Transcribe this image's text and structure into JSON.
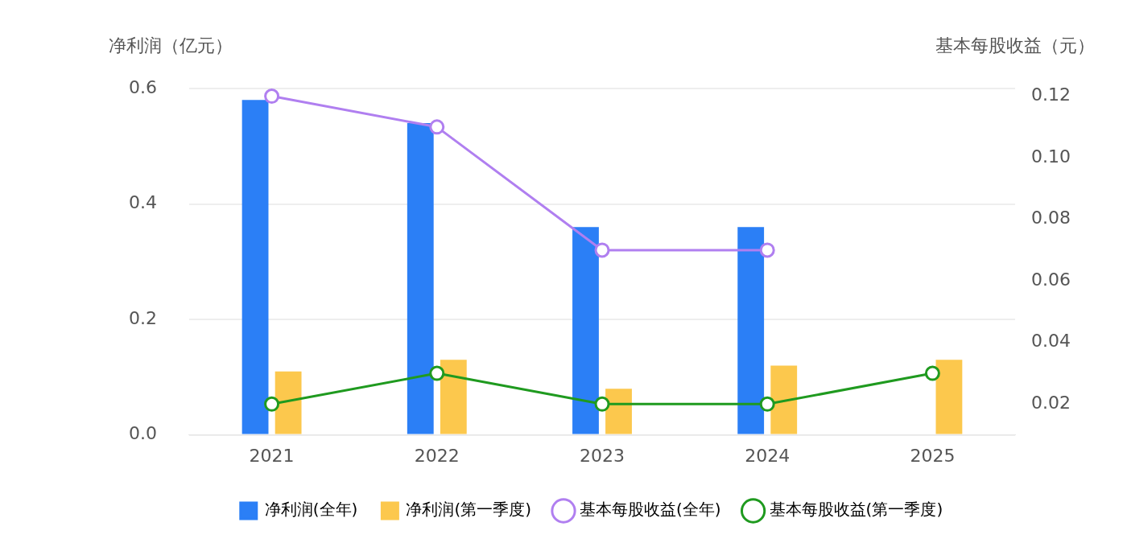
{
  "chart_data": {
    "type": "bar",
    "ylabel": "净利润（亿元）",
    "y2label": "基本每股收益（元）",
    "categories": [
      "2021",
      "2022",
      "2023",
      "2024",
      "2025"
    ],
    "series": [
      {
        "name": "净利润(全年)",
        "color": "#2b7ff6",
        "values": [
          0.58,
          0.54,
          0.36,
          0.36,
          null
        ]
      },
      {
        "name": "净利润(第一季度)",
        "color": "#fcc84d",
        "values": [
          0.11,
          0.13,
          0.08,
          0.12,
          0.13
        ]
      },
      {
        "name": "基本每股收益(全年)",
        "type": "line",
        "axis": "y2",
        "color": "#b07ff0",
        "values": [
          0.12,
          0.11,
          0.07,
          0.07,
          null
        ]
      },
      {
        "name": "基本每股收益(第一季度)",
        "type": "line",
        "axis": "y2",
        "color": "#1f9a1f",
        "values": [
          0.02,
          0.03,
          0.02,
          0.02,
          0.03
        ]
      }
    ],
    "ylim": [
      0,
      0.6
    ],
    "yticks": [
      {
        "value": 0,
        "label": "0.0"
      },
      {
        "value": 0.2,
        "label": "0.2"
      },
      {
        "value": 0.4,
        "label": "0.4"
      },
      {
        "value": 0.6,
        "label": "0.6"
      }
    ],
    "y2lim": [
      0.01,
      0.1225
    ],
    "y2ticks": [
      {
        "value": 0.02,
        "label": "0.02"
      },
      {
        "value": 0.04,
        "label": "0.04"
      },
      {
        "value": 0.06,
        "label": "0.06"
      },
      {
        "value": 0.08,
        "label": "0.08"
      },
      {
        "value": 0.1,
        "label": "0.10"
      },
      {
        "value": 0.12,
        "label": "0.12"
      }
    ],
    "grid": "y",
    "legend": "bottom",
    "marker": "circle",
    "line_style": "solid"
  }
}
